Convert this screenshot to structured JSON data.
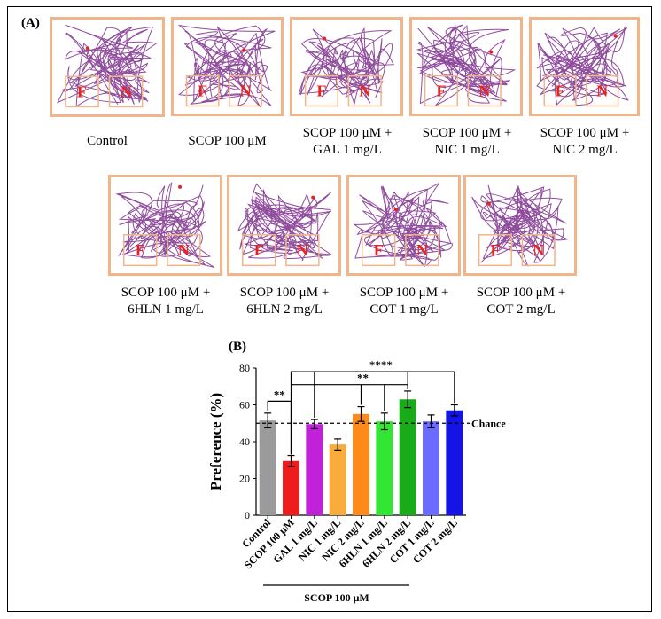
{
  "panel_a": {
    "label": "(A)",
    "zone_labels": [
      "F",
      "N"
    ],
    "track_color": "#7b2d8b",
    "frame_color": "#f2b58a",
    "row1": [
      {
        "caption1": "Control",
        "caption2": ""
      },
      {
        "caption1": "SCOP 100 μM",
        "caption2": ""
      },
      {
        "caption1": "SCOP 100 μM +",
        "caption2": "GAL 1 mg/L"
      },
      {
        "caption1": "SCOP 100 μM +",
        "caption2": "NIC 1 mg/L"
      },
      {
        "caption1": "SCOP 100 μM +",
        "caption2": "NIC 2 mg/L"
      }
    ],
    "row2": [
      {
        "caption1": "SCOP 100 μM +",
        "caption2": "6HLN 1 mg/L"
      },
      {
        "caption1": "SCOP 100 μM +",
        "caption2": "6HLN 2 mg/L"
      },
      {
        "caption1": "SCOP 100 μM +",
        "caption2": "COT 1 mg/L"
      },
      {
        "caption1": "SCOP 100 μM +",
        "caption2": "COT 2 mg/L"
      }
    ]
  },
  "panel_b": {
    "label": "(B)",
    "chart_data": {
      "type": "bar",
      "title": "",
      "ylabel": "Preference (%)",
      "xlabel": "SCOP 100 μM",
      "ylim": [
        0,
        80
      ],
      "yticks": [
        0,
        20,
        40,
        60,
        80
      ],
      "categories": [
        "Control",
        "SCOP 100 μM",
        "GAL 1 mg/L",
        "NIC 1 mg/L",
        "NIC 2 mg/L",
        "6HLN 1 mg/L",
        "6HLN 2 mg/L",
        "COT 1 mg/L",
        "COT 2 mg/L"
      ],
      "values": [
        51.5,
        29.5,
        49.5,
        38.5,
        55,
        51,
        63,
        51,
        57
      ],
      "errors": [
        4,
        3,
        2.5,
        3,
        4,
        4.5,
        4.5,
        3.5,
        3
      ],
      "colors": [
        "#9b9b9b",
        "#ee1c1c",
        "#c021d9",
        "#f8ac3c",
        "#fe8a1a",
        "#33e633",
        "#1aab1a",
        "#6b6bff",
        "#1414e6"
      ],
      "reference_line": {
        "value": 50,
        "label": "Chance"
      },
      "significance": [
        {
          "label": "**",
          "from": 0,
          "to": 1
        },
        {
          "label": "**",
          "from": 1,
          "to": [
            4,
            5,
            6
          ]
        },
        {
          "label": "****",
          "from": 1,
          "to": [
            2,
            6,
            8
          ]
        }
      ]
    }
  }
}
